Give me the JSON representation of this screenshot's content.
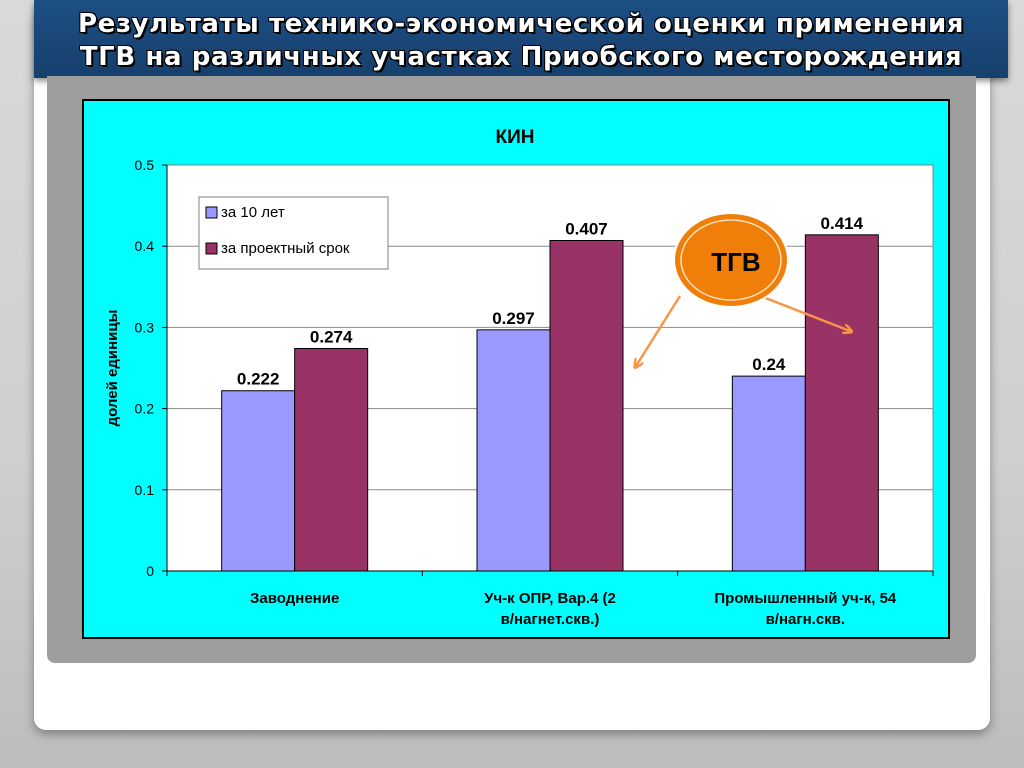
{
  "slide": {
    "title_line1": "Результаты технико-экономической оценки применения",
    "title_line2": "ТГВ на различных участках  Приобского месторождения"
  },
  "callout": {
    "label": "ТГВ"
  },
  "colors": {
    "title_band": "#1d4f84",
    "chart_bg": "#00ffff",
    "plot_bg": "#ffffff",
    "series1": "#9999ff",
    "series2": "#993366",
    "callout_fill": "#f07f0a",
    "arrow": "#f79646"
  },
  "chart_data": {
    "type": "bar",
    "title": "КИН",
    "xlabel": "",
    "ylabel": "долей единицы",
    "ylim": [
      0,
      0.5
    ],
    "yticks": [
      "0",
      "0.1",
      "0.2",
      "0.3",
      "0.4",
      "0.5"
    ],
    "grid": true,
    "legend_position": "top-left",
    "categories": [
      [
        "Заводнение"
      ],
      [
        "Уч-к ОПР, Вар.4 (2",
        "в/нагнет.скв.)"
      ],
      [
        "Промышленный уч-к, 54",
        "в/нагн.скв."
      ]
    ],
    "series": [
      {
        "name": "за 10 лет",
        "values": [
          0.222,
          0.297,
          0.24
        ],
        "labels": [
          "0.222",
          "0.297",
          "0.24"
        ]
      },
      {
        "name": "за проектный срок",
        "values": [
          0.274,
          0.407,
          0.414
        ],
        "labels": [
          "0.274",
          "0.407",
          "0.414"
        ]
      }
    ]
  }
}
